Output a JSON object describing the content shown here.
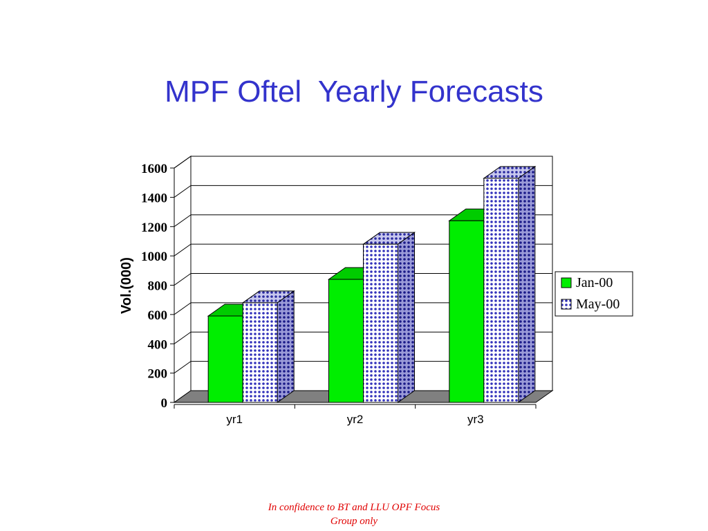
{
  "slide": {
    "title": "MPF Oftel  Yearly Forecasts",
    "footer_line1": "In confidence to BT and LLU OPF Focus",
    "footer_line2": "Group only"
  },
  "colors": {
    "title": "#3333cc",
    "footer": "#e00000",
    "jan": "#00ee00",
    "may_fill": "#ffffff",
    "may_dot": "#3333bb",
    "floor": "#808080"
  },
  "chart_data": {
    "type": "bar",
    "style": "3d-clustered-column",
    "categories": [
      "yr1",
      "yr2",
      "yr3"
    ],
    "series": [
      {
        "name": "Jan-00",
        "values": [
          590,
          840,
          1240
        ]
      },
      {
        "name": "May-00",
        "values": [
          680,
          1080,
          1530
        ]
      }
    ],
    "ylabel": "Vol.(000)",
    "xlabel": "",
    "ylim": [
      0,
      1600
    ],
    "yticks": [
      0,
      200,
      400,
      600,
      800,
      1000,
      1200,
      1400,
      1600
    ],
    "grid": true,
    "legend": "right"
  }
}
